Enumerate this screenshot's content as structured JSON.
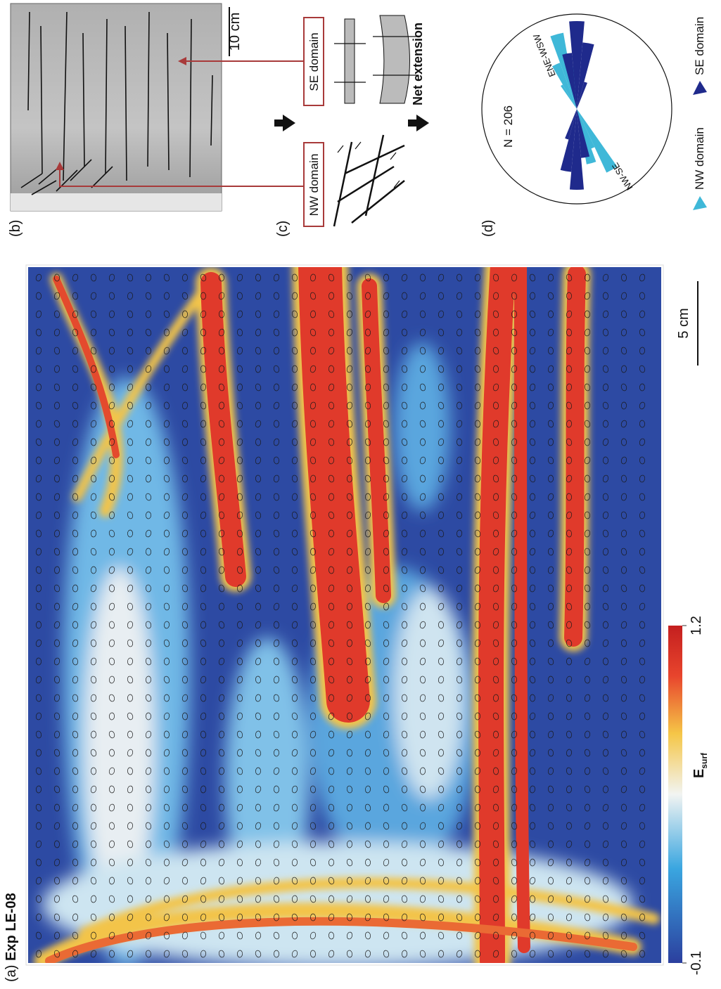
{
  "panels": {
    "a": {
      "label": "(a)",
      "title": "Exp LE-08",
      "scale_bar": "5 cm",
      "colorbar": {
        "label": "E",
        "label_sub": "surf",
        "min": -0.1,
        "max": 1.2
      }
    },
    "b": {
      "label": "(b)",
      "scale_bar": "10 cm"
    },
    "c": {
      "label": "(c)",
      "boxes": [
        "NW domain",
        "SE domain"
      ],
      "caption": "Net extension"
    },
    "d": {
      "label": "(d)",
      "count": "N = 206",
      "petal_labels": [
        "ENE-WSW",
        "NW-SE"
      ],
      "legend": [
        "NW domain",
        "SE domain"
      ]
    }
  }
}
